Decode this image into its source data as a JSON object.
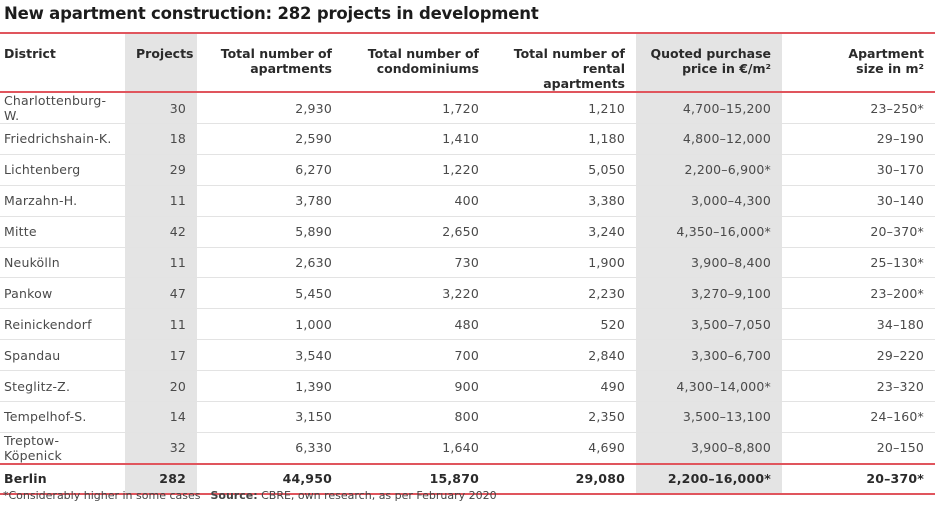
{
  "title": "New apartment construction: 282 projects in development",
  "columns": [
    [
      "District"
    ],
    [
      "Projects"
    ],
    [
      "Total number of",
      "apartments"
    ],
    [
      "Total number of",
      "condominiums"
    ],
    [
      "Total number of",
      "rental apartments"
    ],
    [
      "Quoted purchase",
      "price in €/m²"
    ],
    [
      "Apartment",
      "size in m²"
    ]
  ],
  "rows": [
    [
      "Charlottenburg-W.",
      "30",
      "2,930",
      "1,720",
      "1,210",
      "4,700–15,200",
      "23–250*"
    ],
    [
      "Friedrichshain-K.",
      "18",
      "2,590",
      "1,410",
      "1,180",
      "4,800–12,000",
      "29–190"
    ],
    [
      "Lichtenberg",
      "29",
      "6,270",
      "1,220",
      "5,050",
      "2,200–6,900*",
      "30–170"
    ],
    [
      "Marzahn-H.",
      "11",
      "3,780",
      "400",
      "3,380",
      "3,000–4,300",
      "30–140"
    ],
    [
      "Mitte",
      "42",
      "5,890",
      "2,650",
      "3,240",
      "4,350–16,000*",
      "20–370*"
    ],
    [
      "Neukölln",
      "11",
      "2,630",
      "730",
      "1,900",
      "3,900–8,400",
      "25–130*"
    ],
    [
      "Pankow",
      "47",
      "5,450",
      "3,220",
      "2,230",
      "3,270–9,100",
      "23–200*"
    ],
    [
      "Reinickendorf",
      "11",
      "1,000",
      "480",
      "520",
      "3,500–7,050",
      "34–180"
    ],
    [
      "Spandau",
      "17",
      "3,540",
      "700",
      "2,840",
      "3,300–6,700",
      "29–220"
    ],
    [
      "Steglitz-Z.",
      "20",
      "1,390",
      "900",
      "490",
      "4,300–14,000*",
      "23–320"
    ],
    [
      "Tempelhof-S.",
      "14",
      "3,150",
      "800",
      "2,350",
      "3,500–13,100",
      "24–160*"
    ],
    [
      "Treptow-Köpenick",
      "32",
      "6,330",
      "1,640",
      "4,690",
      "3,900–8,800",
      "20–150"
    ]
  ],
  "total": [
    "Berlin",
    "282",
    "44,950",
    "15,870",
    "29,080",
    "2,200–16,000*",
    "20–370*"
  ],
  "footnote": {
    "note": "*Considerably higher in some cases",
    "source_label": "Source:",
    "source_text": " CBRE, own research, as per February 2020"
  },
  "colors": {
    "accent_rule": "#e0555d",
    "shaded_column": "#e4e4e4"
  }
}
